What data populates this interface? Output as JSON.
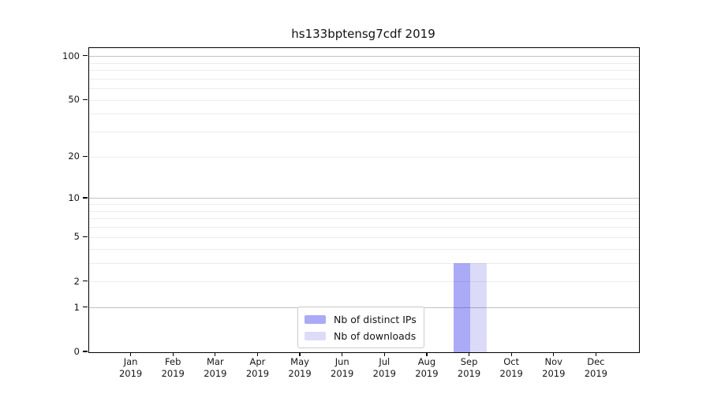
{
  "chart_data": {
    "type": "bar",
    "title": "hs133bptensg7cdf 2019",
    "categories": [
      {
        "month": "Jan",
        "year": "2019"
      },
      {
        "month": "Feb",
        "year": "2019"
      },
      {
        "month": "Mar",
        "year": "2019"
      },
      {
        "month": "Apr",
        "year": "2019"
      },
      {
        "month": "May",
        "year": "2019"
      },
      {
        "month": "Jun",
        "year": "2019"
      },
      {
        "month": "Jul",
        "year": "2019"
      },
      {
        "month": "Aug",
        "year": "2019"
      },
      {
        "month": "Sep",
        "year": "2019"
      },
      {
        "month": "Oct",
        "year": "2019"
      },
      {
        "month": "Nov",
        "year": "2019"
      },
      {
        "month": "Dec",
        "year": "2019"
      }
    ],
    "series": [
      {
        "name": "Nb of distinct IPs",
        "values": [
          0,
          0,
          0,
          0,
          0,
          0,
          0,
          0,
          3,
          0,
          0,
          0
        ],
        "bar_rgba": "rgba(0,0,230,0.335)",
        "swatch_hex": "#aaaaf6"
      },
      {
        "name": "Nb of downloads",
        "values": [
          0,
          0,
          0,
          0,
          0,
          0,
          0,
          0,
          3,
          0,
          0,
          0
        ],
        "bar_rgba": "rgba(0,0,210,0.14)",
        "swatch_hex": "#dcdcf9"
      }
    ],
    "xlabel": "",
    "ylabel": "",
    "yscale": "log1p",
    "ylim": [
      0,
      114
    ],
    "yticks": [
      0,
      1,
      2,
      5,
      10,
      20,
      50,
      100
    ],
    "grid": {
      "on": true,
      "major_values": [
        1,
        10,
        100
      ],
      "minor_values": [
        2,
        3,
        4,
        5,
        6,
        7,
        8,
        9,
        20,
        30,
        40,
        50,
        60,
        70,
        80,
        90
      ],
      "major_color": "#c2c2c2",
      "minor_color": "#ececec"
    },
    "legend": {
      "position": "inside-bottom-center"
    },
    "colors": {
      "axis": "#000000",
      "text": "#151515",
      "background": "#ffffff"
    }
  }
}
